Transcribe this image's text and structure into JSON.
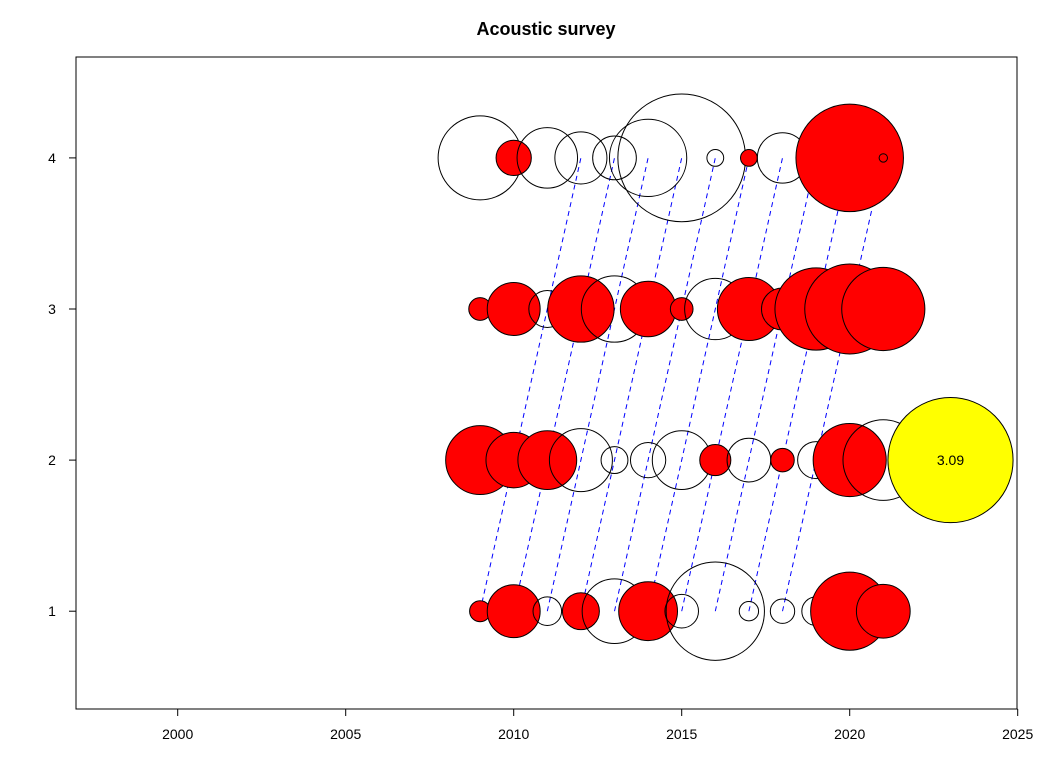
{
  "chart_data": {
    "type": "scatter",
    "title": "Acoustic survey",
    "xlabel": "",
    "ylabel": "",
    "xlim": [
      1997.2,
      2025.2
    ],
    "ylim": [
      0.35,
      4.65
    ],
    "xticks": [
      2000,
      2005,
      2010,
      2015,
      2020,
      2025
    ],
    "yticks": [
      1,
      2,
      3,
      4
    ],
    "grid": false,
    "legend": "none",
    "colors": {
      "positive": "#ff0000",
      "negative": "#ffffff",
      "highlight": "#ffff00",
      "cohort_line": "#0000ff",
      "outline": "#000000"
    },
    "points": [
      {
        "x": 2009,
        "y": 4,
        "r": 1.0,
        "sign": "neg"
      },
      {
        "x": 2010,
        "y": 4,
        "r": 0.42,
        "sign": "pos"
      },
      {
        "x": 2011,
        "y": 4,
        "r": 0.72,
        "sign": "neg"
      },
      {
        "x": 2012,
        "y": 4,
        "r": 0.62,
        "sign": "neg"
      },
      {
        "x": 2013,
        "y": 4,
        "r": 0.52,
        "sign": "neg"
      },
      {
        "x": 2014,
        "y": 4,
        "r": 0.92,
        "sign": "neg"
      },
      {
        "x": 2015,
        "y": 4,
        "r": 1.52,
        "sign": "neg"
      },
      {
        "x": 2016,
        "y": 4,
        "r": 0.2,
        "sign": "neg"
      },
      {
        "x": 2017,
        "y": 4,
        "r": 0.2,
        "sign": "pos"
      },
      {
        "x": 2018,
        "y": 4,
        "r": 0.6,
        "sign": "neg"
      },
      {
        "x": 2019,
        "y": 4,
        "r": 0.26,
        "sign": "neg"
      },
      {
        "x": 2020,
        "y": 4,
        "r": 1.28,
        "sign": "pos"
      },
      {
        "x": 2021,
        "y": 4,
        "r": 0.1,
        "sign": "neg"
      },
      {
        "x": 2009,
        "y": 3,
        "r": 0.27,
        "sign": "pos"
      },
      {
        "x": 2010,
        "y": 3,
        "r": 0.63,
        "sign": "pos"
      },
      {
        "x": 2011,
        "y": 3,
        "r": 0.44,
        "sign": "neg"
      },
      {
        "x": 2012,
        "y": 3,
        "r": 0.79,
        "sign": "pos"
      },
      {
        "x": 2013,
        "y": 3,
        "r": 0.79,
        "sign": "neg"
      },
      {
        "x": 2014,
        "y": 3,
        "r": 0.66,
        "sign": "pos"
      },
      {
        "x": 2015,
        "y": 3,
        "r": 0.27,
        "sign": "pos"
      },
      {
        "x": 2016,
        "y": 3,
        "r": 0.73,
        "sign": "neg"
      },
      {
        "x": 2017,
        "y": 3,
        "r": 0.75,
        "sign": "pos"
      },
      {
        "x": 2018,
        "y": 3,
        "r": 0.5,
        "sign": "pos"
      },
      {
        "x": 2019,
        "y": 3,
        "r": 0.98,
        "sign": "pos"
      },
      {
        "x": 2020,
        "y": 3,
        "r": 1.07,
        "sign": "pos"
      },
      {
        "x": 2021,
        "y": 3,
        "r": 0.99,
        "sign": "pos"
      },
      {
        "x": 2009,
        "y": 2,
        "r": 0.82,
        "sign": "pos"
      },
      {
        "x": 2010,
        "y": 2,
        "r": 0.66,
        "sign": "pos"
      },
      {
        "x": 2011,
        "y": 2,
        "r": 0.7,
        "sign": "pos"
      },
      {
        "x": 2012,
        "y": 2,
        "r": 0.75,
        "sign": "neg"
      },
      {
        "x": 2013,
        "y": 2,
        "r": 0.32,
        "sign": "neg"
      },
      {
        "x": 2014,
        "y": 2,
        "r": 0.42,
        "sign": "neg"
      },
      {
        "x": 2015,
        "y": 2,
        "r": 0.7,
        "sign": "neg"
      },
      {
        "x": 2016,
        "y": 2,
        "r": 0.37,
        "sign": "pos"
      },
      {
        "x": 2017,
        "y": 2,
        "r": 0.52,
        "sign": "neg"
      },
      {
        "x": 2018,
        "y": 2,
        "r": 0.28,
        "sign": "pos"
      },
      {
        "x": 2019,
        "y": 2,
        "r": 0.44,
        "sign": "neg"
      },
      {
        "x": 2020,
        "y": 2,
        "r": 0.87,
        "sign": "pos"
      },
      {
        "x": 2021,
        "y": 2,
        "r": 0.96,
        "sign": "neg"
      },
      {
        "x": 2023,
        "y": 2,
        "r": 1.49,
        "sign": "highlight",
        "label": "3.09"
      },
      {
        "x": 2009,
        "y": 1,
        "r": 0.25,
        "sign": "pos"
      },
      {
        "x": 2010,
        "y": 1,
        "r": 0.63,
        "sign": "pos"
      },
      {
        "x": 2011,
        "y": 1,
        "r": 0.34,
        "sign": "neg"
      },
      {
        "x": 2012,
        "y": 1,
        "r": 0.44,
        "sign": "pos"
      },
      {
        "x": 2013,
        "y": 1,
        "r": 0.77,
        "sign": "neg"
      },
      {
        "x": 2014,
        "y": 1,
        "r": 0.7,
        "sign": "pos"
      },
      {
        "x": 2015,
        "y": 1,
        "r": 0.4,
        "sign": "neg"
      },
      {
        "x": 2016,
        "y": 1,
        "r": 1.17,
        "sign": "neg"
      },
      {
        "x": 2017,
        "y": 1,
        "r": 0.23,
        "sign": "neg"
      },
      {
        "x": 2018,
        "y": 1,
        "r": 0.29,
        "sign": "neg"
      },
      {
        "x": 2019,
        "y": 1,
        "r": 0.34,
        "sign": "neg"
      },
      {
        "x": 2020,
        "y": 1,
        "r": 0.93,
        "sign": "pos"
      },
      {
        "x": 2021,
        "y": 1,
        "r": 0.64,
        "sign": "pos"
      }
    ],
    "cohort_start_years": [
      2009,
      2010,
      2011,
      2012,
      2013,
      2014,
      2015,
      2016,
      2017,
      2018
    ]
  }
}
